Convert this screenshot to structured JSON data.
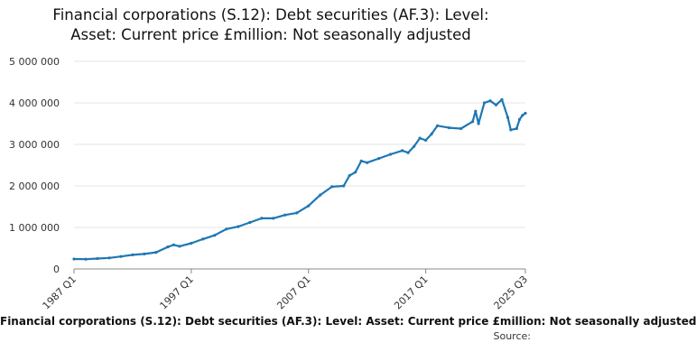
{
  "title": "Financial corporations (S.12): Debt securities (AF.3): Level:\nAsset: Current price £million: Not seasonally adjusted",
  "legend": "Financial corporations (S.12): Debt securities (AF.3): Level: Asset: Current price £million: Not seasonally adjusted",
  "source": "Source:",
  "colors": {
    "series": "#1f77b4",
    "grid": "#e6e6e6",
    "axis": "#888888",
    "text": "#111111"
  },
  "chart_data": {
    "type": "line",
    "title": "Financial corporations (S.12): Debt securities (AF.3): Level: Asset: Current price £million: Not seasonally adjusted",
    "xlabel": "",
    "ylabel": "",
    "x_tick_labels": [
      "1987 Q1",
      "1997 Q1",
      "2007 Q1",
      "2017 Q1",
      "2025 Q3"
    ],
    "y_ticks": [
      0,
      1000000,
      2000000,
      3000000,
      4000000,
      5000000
    ],
    "y_tick_labels": [
      "0",
      "1 000 000",
      "2 000 000",
      "3 000 000",
      "4 000 000",
      "5 000 000"
    ],
    "ylim": [
      0,
      5000000
    ],
    "xlim": [
      "1987 Q1",
      "2025 Q3"
    ],
    "grid": true,
    "series": [
      {
        "name": "Financial corporations (S.12): Debt securities (AF.3): Level: Asset: Current price £million: Not seasonally adjusted",
        "points": [
          [
            "1987 Q1",
            240000
          ],
          [
            "1988 Q1",
            235000
          ],
          [
            "1989 Q1",
            250000
          ],
          [
            "1990 Q1",
            265000
          ],
          [
            "1991 Q1",
            300000
          ],
          [
            "1992 Q1",
            340000
          ],
          [
            "1993 Q1",
            360000
          ],
          [
            "1994 Q1",
            400000
          ],
          [
            "1995 Q1",
            530000
          ],
          [
            "1995 Q3",
            580000
          ],
          [
            "1996 Q1",
            545000
          ],
          [
            "1997 Q1",
            620000
          ],
          [
            "1998 Q1",
            720000
          ],
          [
            "1999 Q1",
            810000
          ],
          [
            "2000 Q1",
            960000
          ],
          [
            "2001 Q1",
            1020000
          ],
          [
            "2002 Q1",
            1120000
          ],
          [
            "2003 Q1",
            1220000
          ],
          [
            "2004 Q1",
            1220000
          ],
          [
            "2005 Q1",
            1300000
          ],
          [
            "2006 Q1",
            1350000
          ],
          [
            "2007 Q1",
            1520000
          ],
          [
            "2008 Q1",
            1780000
          ],
          [
            "2009 Q1",
            1980000
          ],
          [
            "2010 Q1",
            2000000
          ],
          [
            "2010 Q3",
            2250000
          ],
          [
            "2011 Q1",
            2330000
          ],
          [
            "2011 Q3",
            2600000
          ],
          [
            "2012 Q1",
            2560000
          ],
          [
            "2013 Q1",
            2660000
          ],
          [
            "2014 Q1",
            2760000
          ],
          [
            "2015 Q1",
            2850000
          ],
          [
            "2015 Q3",
            2800000
          ],
          [
            "2016 Q1",
            2950000
          ],
          [
            "2016 Q3",
            3150000
          ],
          [
            "2017 Q1",
            3100000
          ],
          [
            "2017 Q3",
            3250000
          ],
          [
            "2018 Q1",
            3450000
          ],
          [
            "2019 Q1",
            3400000
          ],
          [
            "2020 Q1",
            3380000
          ],
          [
            "2021 Q1",
            3550000
          ],
          [
            "2021 Q2",
            3800000
          ],
          [
            "2021 Q3",
            3500000
          ],
          [
            "2022 Q1",
            4000000
          ],
          [
            "2022 Q3",
            4050000
          ],
          [
            "2023 Q1",
            3950000
          ],
          [
            "2023 Q3",
            4080000
          ],
          [
            "2024 Q1",
            3650000
          ],
          [
            "2024 Q2",
            3350000
          ],
          [
            "2024 Q4",
            3380000
          ],
          [
            "2025 Q1",
            3600000
          ],
          [
            "2025 Q2",
            3700000
          ],
          [
            "2025 Q3",
            3750000
          ]
        ]
      }
    ]
  }
}
